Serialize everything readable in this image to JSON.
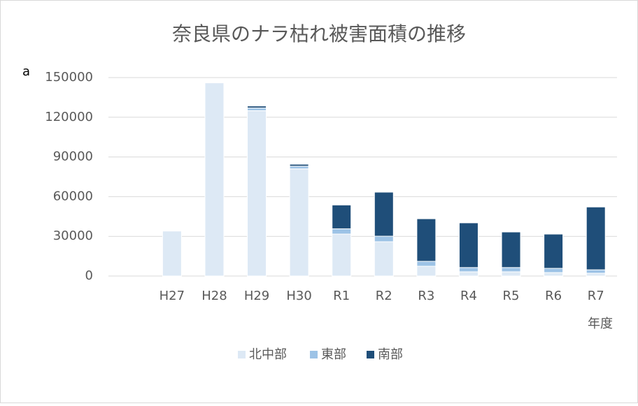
{
  "chart_data": {
    "type": "stacked-bar",
    "title": "奈良県のナラ枯れ被害面積の推移",
    "annotation": "a",
    "x_label": "年度",
    "categories": [
      null,
      "H27",
      "H28",
      "H29",
      "H30",
      "R1",
      "R2",
      "R3",
      "R4",
      "R5",
      "R6",
      "R7"
    ],
    "series": [
      {
        "name": "北中部",
        "color": "#dde9f5",
        "values": [
          null,
          34000,
          146000,
          125000,
          81000,
          31700,
          25900,
          7400,
          3200,
          3200,
          2600,
          2100
        ]
      },
      {
        "name": "東部",
        "color": "#9dc3e6",
        "values": [
          null,
          null,
          null,
          2000,
          2000,
          4000,
          4200,
          3700,
          3200,
          3200,
          3200,
          2600
        ]
      },
      {
        "name": "南部",
        "color": "#1f4e79",
        "values": [
          null,
          null,
          null,
          1500,
          1500,
          18000,
          33300,
          32200,
          33800,
          26900,
          25900,
          47500
        ]
      }
    ],
    "ylim": [
      0,
      150000
    ],
    "yticks": [
      0,
      30000,
      60000,
      90000,
      120000,
      150000
    ],
    "grid": true,
    "legend": "bottom"
  }
}
